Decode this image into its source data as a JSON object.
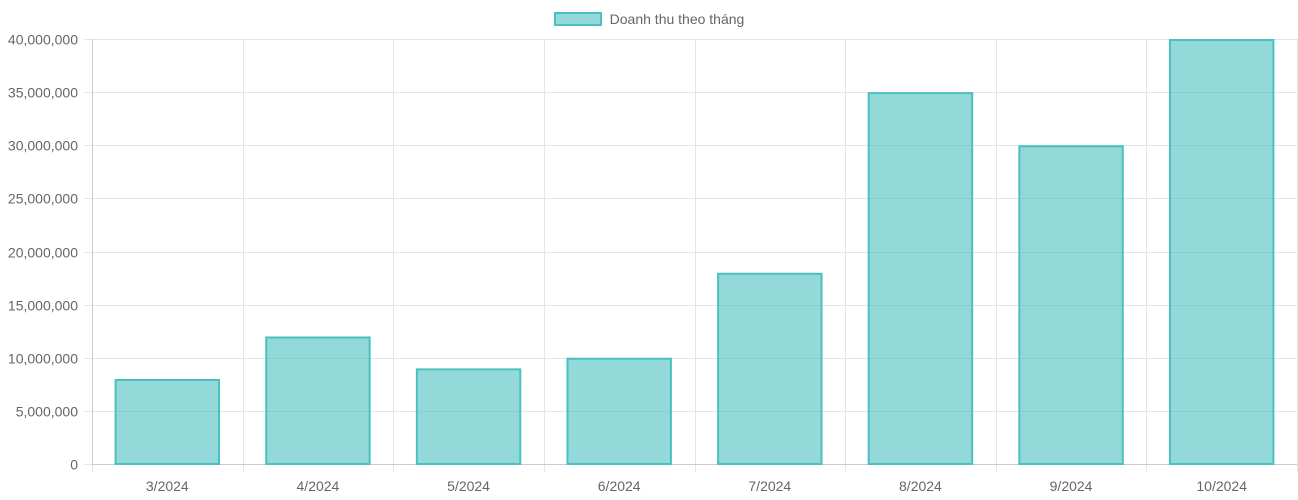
{
  "chart_data": {
    "type": "bar",
    "legend": {
      "label": "Doanh thu theo tháng",
      "position": "top-center"
    },
    "categories": [
      "3/2024",
      "4/2024",
      "5/2024",
      "6/2024",
      "7/2024",
      "8/2024",
      "9/2024",
      "10/2024"
    ],
    "series": [
      {
        "name": "Doanh thu theo tháng",
        "values": [
          8000000,
          12000000,
          9000000,
          10000000,
          18000000,
          35000000,
          30000000,
          40000000
        ]
      }
    ],
    "ylim": [
      0,
      40000000
    ],
    "yticks": [
      0,
      5000000,
      10000000,
      15000000,
      20000000,
      25000000,
      30000000,
      35000000,
      40000000
    ],
    "ytick_labels": [
      "0",
      "5,000,000",
      "10,000,000",
      "15,000,000",
      "20,000,000",
      "25,000,000",
      "30,000,000",
      "35,000,000",
      "40,000,000"
    ],
    "grid": true,
    "colors": {
      "bar_fill": "rgba(75,192,192,0.6)",
      "bar_border": "#4bc0c0",
      "grid": "#e5e5e5",
      "text": "#666666"
    }
  }
}
